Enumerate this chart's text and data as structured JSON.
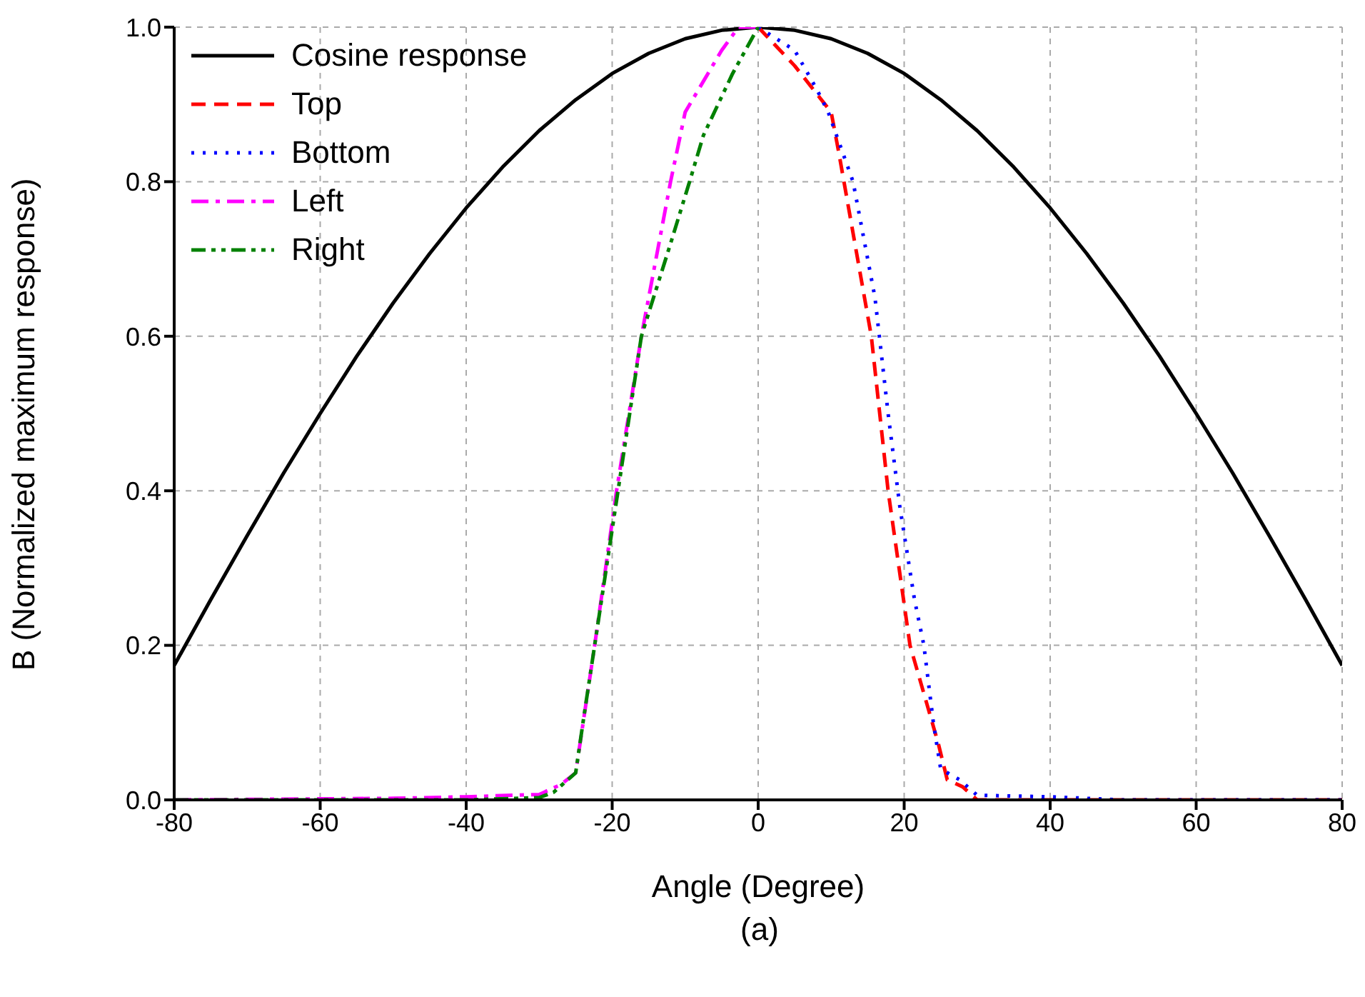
{
  "chart_data": {
    "type": "line",
    "xlabel": "Angle (Degree)",
    "ylabel": "B (Normalized maximum response)",
    "annotations": [
      "(a)"
    ],
    "xlim": [
      -80,
      80
    ],
    "xticks": [
      -80,
      -60,
      -40,
      -20,
      0,
      20,
      40,
      60,
      80
    ],
    "ylim": [
      0,
      1
    ],
    "yticks": [
      {
        "value": 0,
        "label": "0.0"
      },
      0.2,
      0.4,
      0.6,
      0.8,
      {
        "value": 1,
        "label": "1.0"
      }
    ],
    "grid": true,
    "legend": "top left",
    "marker": "none",
    "series": [
      {
        "name": "Cosine response",
        "color": "#000000",
        "line_style": "solid",
        "x": [
          -80,
          -75,
          -70,
          -65,
          -60,
          -55,
          -50,
          -45,
          -40,
          -35,
          -30,
          -25,
          -20,
          -15,
          -10,
          -5,
          0,
          5,
          10,
          15,
          20,
          25,
          30,
          35,
          40,
          45,
          50,
          55,
          60,
          65,
          70,
          75,
          80
        ],
        "values": [
          0.174,
          0.259,
          0.342,
          0.423,
          0.5,
          0.574,
          0.643,
          0.707,
          0.766,
          0.819,
          0.866,
          0.906,
          0.94,
          0.966,
          0.985,
          0.996,
          1,
          0.996,
          0.985,
          0.966,
          0.94,
          0.906,
          0.866,
          0.819,
          0.766,
          0.707,
          0.643,
          0.574,
          0.5,
          0.423,
          0.342,
          0.259,
          0.174
        ]
      },
      {
        "name": "Top",
        "color": "#ff0000",
        "line_style": "dashed",
        "x": [
          0,
          5,
          10,
          11,
          15.5,
          17.8,
          20.8,
          24.7,
          25.9,
          28,
          30,
          80
        ],
        "values": [
          1,
          0.95,
          0.89,
          0.84,
          0.6,
          0.4,
          0.2,
          0.072,
          0.026,
          0.017,
          0,
          0
        ]
      },
      {
        "name": "Bottom",
        "color": "#0000ff",
        "line_style": "dotted",
        "x": [
          0,
          5,
          8,
          9.6,
          13,
          16,
          17.8,
          19.4,
          21.4,
          22.7,
          24,
          25,
          27.6,
          30,
          40,
          50,
          80
        ],
        "values": [
          1,
          0.97,
          0.92,
          0.89,
          0.8,
          0.65,
          0.5,
          0.38,
          0.26,
          0.2,
          0.1,
          0.04,
          0.026,
          0.006,
          0.004,
          0,
          0
        ]
      },
      {
        "name": "Left",
        "color": "#ff00ff",
        "line_style": "dashdot",
        "x": [
          -80,
          -50,
          -40,
          -30,
          -27,
          -25,
          -22.4,
          -19.4,
          -16,
          -12,
          -10,
          -5,
          -2.7,
          0
        ],
        "values": [
          0,
          0.002,
          0.004,
          0.007,
          0.02,
          0.035,
          0.2,
          0.4,
          0.6,
          0.8,
          0.89,
          0.97,
          1,
          1
        ]
      },
      {
        "name": "Right",
        "color": "#008000",
        "line_style": "dashdotdot",
        "x": [
          -80,
          -40,
          -30,
          -28,
          -25,
          -24,
          -22.4,
          -19.2,
          -16,
          -12,
          -9.4,
          -7.5,
          -3.5,
          0
        ],
        "values": [
          0,
          0,
          0.003,
          0.01,
          0.035,
          0.1,
          0.2,
          0.4,
          0.6,
          0.72,
          0.8,
          0.86,
          0.94,
          1
        ]
      }
    ]
  }
}
